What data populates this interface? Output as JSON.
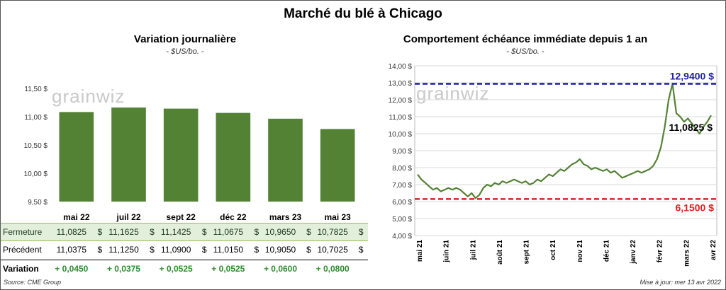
{
  "title": "Marché du blé à Chicago",
  "left_chart": {
    "title": "Variation journalière",
    "unit": "- $US/bo. -",
    "watermark": "grainwiz"
  },
  "right_chart": {
    "title": "Comportement échéance immédiate depuis 1 an",
    "unit": "- $US/bo. -",
    "watermark": "grainwiz",
    "high_label": "12,9400 $",
    "low_label": "6,1500 $",
    "last_label": "11,0825 $"
  },
  "table": {
    "close_label": "Fermeture",
    "prev_label": "Précédent",
    "var_label": "Variation",
    "currency": "$",
    "close": [
      "11,0825",
      "11,1625",
      "11,1425",
      "11,0675",
      "10,9650",
      "10,7825"
    ],
    "prev": [
      "11,0375",
      "11,1250",
      "11,0900",
      "11,0150",
      "10,9050",
      "10,7025"
    ],
    "variation": [
      "+ 0,0450",
      "+ 0,0375",
      "+ 0,0525",
      "+ 0,0525",
      "+ 0,0600",
      "+ 0,0800"
    ]
  },
  "footer": {
    "source": "Source: CME Group",
    "updated": "Mise à jour: mer 13 avr 2022"
  },
  "colors": {
    "bar": "#548235",
    "line": "#548235",
    "high": "#1f1fa8",
    "low": "#e02020",
    "table_bg": "#e2efda"
  },
  "chart_data": [
    {
      "type": "bar",
      "title": "Variation journalière",
      "categories": [
        "mai 22",
        "juil 22",
        "sept 22",
        "déc 22",
        "mars 23",
        "mai 23"
      ],
      "values": [
        11.0825,
        11.1625,
        11.1425,
        11.0675,
        10.965,
        10.7825
      ],
      "ylim": [
        9.5,
        11.5
      ],
      "yticks": [
        "9,50 $",
        "10,00 $",
        "10,50 $",
        "11,00 $",
        "11,50 $"
      ],
      "ytick_values": [
        9.5,
        10.0,
        10.5,
        11.0,
        11.5
      ]
    },
    {
      "type": "line",
      "title": "Comportement échéance immédiate depuis 1 an",
      "ylim": [
        4.0,
        14.0
      ],
      "yticks": [
        "4,00 $",
        "5,00 $",
        "6,00 $",
        "7,00 $",
        "8,00 $",
        "9,00 $",
        "10,00 $",
        "11,00 $",
        "12,00 $",
        "13,00 $",
        "14,00 $"
      ],
      "xtick_labels": [
        "mai 21",
        "juin 21",
        "juil 21",
        "août 21",
        "sept 21",
        "oct 21",
        "nov 21",
        "déc 21",
        "janv 22",
        "févr 22",
        "mars 22",
        "avr 22"
      ],
      "high": 12.94,
      "low": 6.15,
      "last": 11.0825,
      "series": [
        {
          "values": [
            7.6,
            7.3,
            7.1,
            6.9,
            6.7,
            6.8,
            6.6,
            6.7,
            6.8,
            6.7,
            6.8,
            6.7,
            6.5,
            6.3,
            6.5,
            6.2,
            6.4,
            6.8,
            7.0,
            6.9,
            7.1,
            7.0,
            7.2,
            7.1,
            7.2,
            7.3,
            7.2,
            7.1,
            7.2,
            7.0,
            7.1,
            7.3,
            7.2,
            7.4,
            7.6,
            7.5,
            7.7,
            7.9,
            7.8,
            8.0,
            8.2,
            8.3,
            8.5,
            8.2,
            8.1,
            7.9,
            8.0,
            7.9,
            7.8,
            7.9,
            7.7,
            7.8,
            7.6,
            7.4,
            7.5,
            7.6,
            7.7,
            7.8,
            7.7,
            7.8,
            7.9,
            8.1,
            8.5,
            9.2,
            10.4,
            12.0,
            12.94,
            11.2,
            11.0,
            10.7,
            10.9,
            10.6,
            10.3,
            10.0,
            10.4,
            10.7,
            11.08
          ]
        }
      ]
    }
  ]
}
